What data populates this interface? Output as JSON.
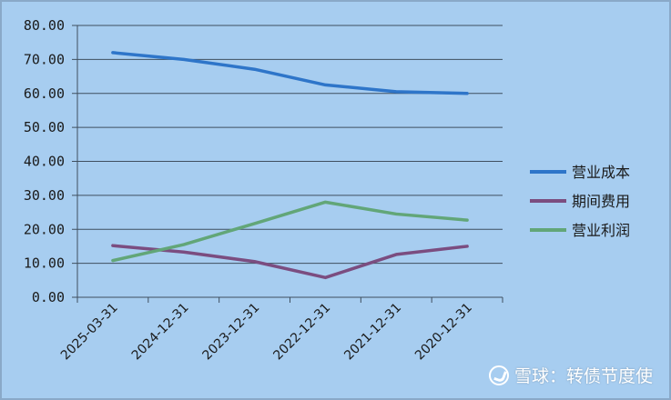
{
  "chart_data": {
    "type": "line",
    "categories": [
      "2025-03-31",
      "2024-12-31",
      "2023-12-31",
      "2022-12-31",
      "2021-12-31",
      "2020-12-31"
    ],
    "series": [
      {
        "name": "营业成本",
        "values": [
          72.0,
          70.0,
          67.1,
          62.5,
          60.5,
          60.0
        ],
        "color": "#2e75c9"
      },
      {
        "name": "期间费用",
        "values": [
          15.2,
          13.3,
          10.5,
          5.8,
          12.6,
          15.0
        ],
        "color": "#7b4d80"
      },
      {
        "name": "营业利润",
        "values": [
          10.8,
          15.5,
          21.7,
          28.0,
          24.5,
          22.7
        ],
        "color": "#62a678"
      }
    ],
    "ylim": [
      0,
      80
    ],
    "yticks": [
      "0.00",
      "10.00",
      "20.00",
      "30.00",
      "40.00",
      "50.00",
      "60.00",
      "70.00",
      "80.00"
    ],
    "grid": true,
    "legend": "right",
    "background": "#a7cdf0"
  },
  "watermark": {
    "text": "雪球：转债节度使"
  }
}
